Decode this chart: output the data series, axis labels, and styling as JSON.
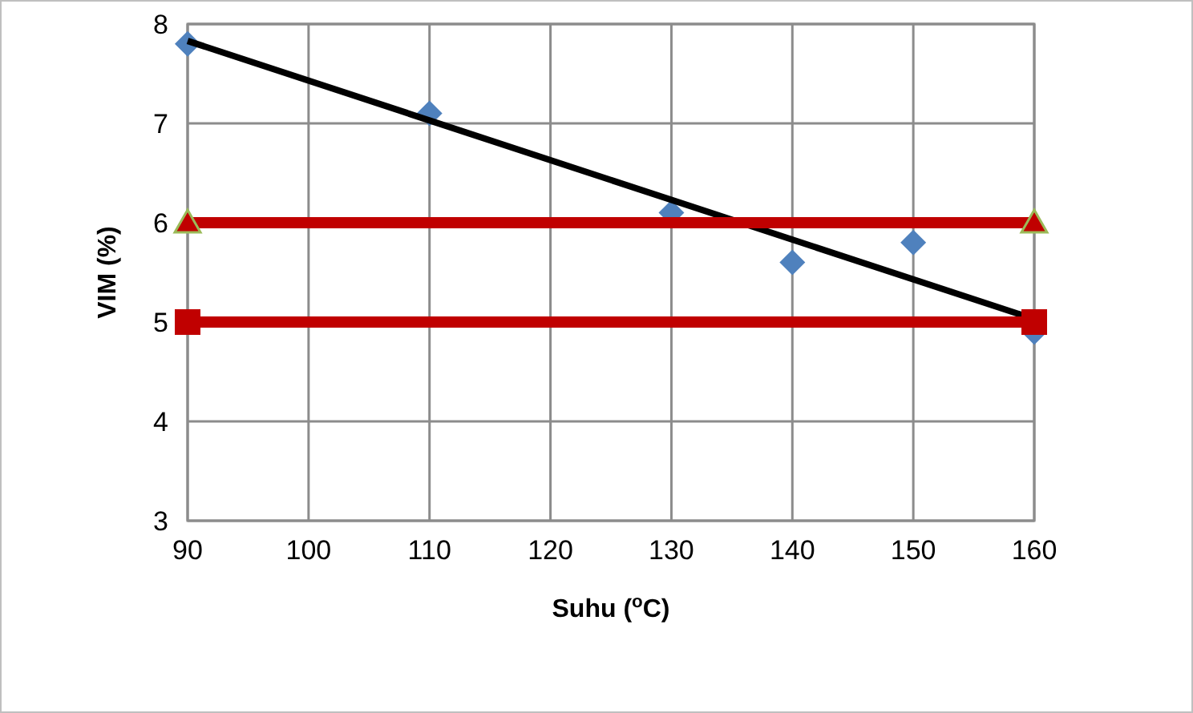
{
  "chart_data": {
    "type": "scatter",
    "xlabel": "Suhu ($^{o}$C)",
    "ylabel": "VIM (%)",
    "xlim": [
      90,
      160
    ],
    "xticks": [
      90,
      100,
      110,
      120,
      130,
      140,
      150,
      160
    ],
    "ylim": [
      3,
      8
    ],
    "yticks": [
      3,
      4,
      5,
      6,
      7,
      8
    ],
    "grid": true,
    "series": [
      {
        "marker": "diamond",
        "color": "#4f81bd",
        "x": [
          90,
          110,
          130,
          140,
          150,
          160
        ],
        "values": [
          7.8,
          7.1,
          6.1,
          5.6,
          5.8,
          4.9
        ]
      },
      {
        "type": "line",
        "marker": "none",
        "color": "#000000",
        "x": [
          90,
          160
        ],
        "values": [
          7.83,
          5.03
        ]
      },
      {
        "type": "line",
        "marker": "triangle",
        "color": "#c00000",
        "x": [
          90,
          160
        ],
        "values": [
          6,
          6
        ]
      },
      {
        "type": "line",
        "marker": "square",
        "color": "#c00000",
        "x": [
          90,
          160
        ],
        "values": [
          5,
          5
        ]
      }
    ]
  }
}
